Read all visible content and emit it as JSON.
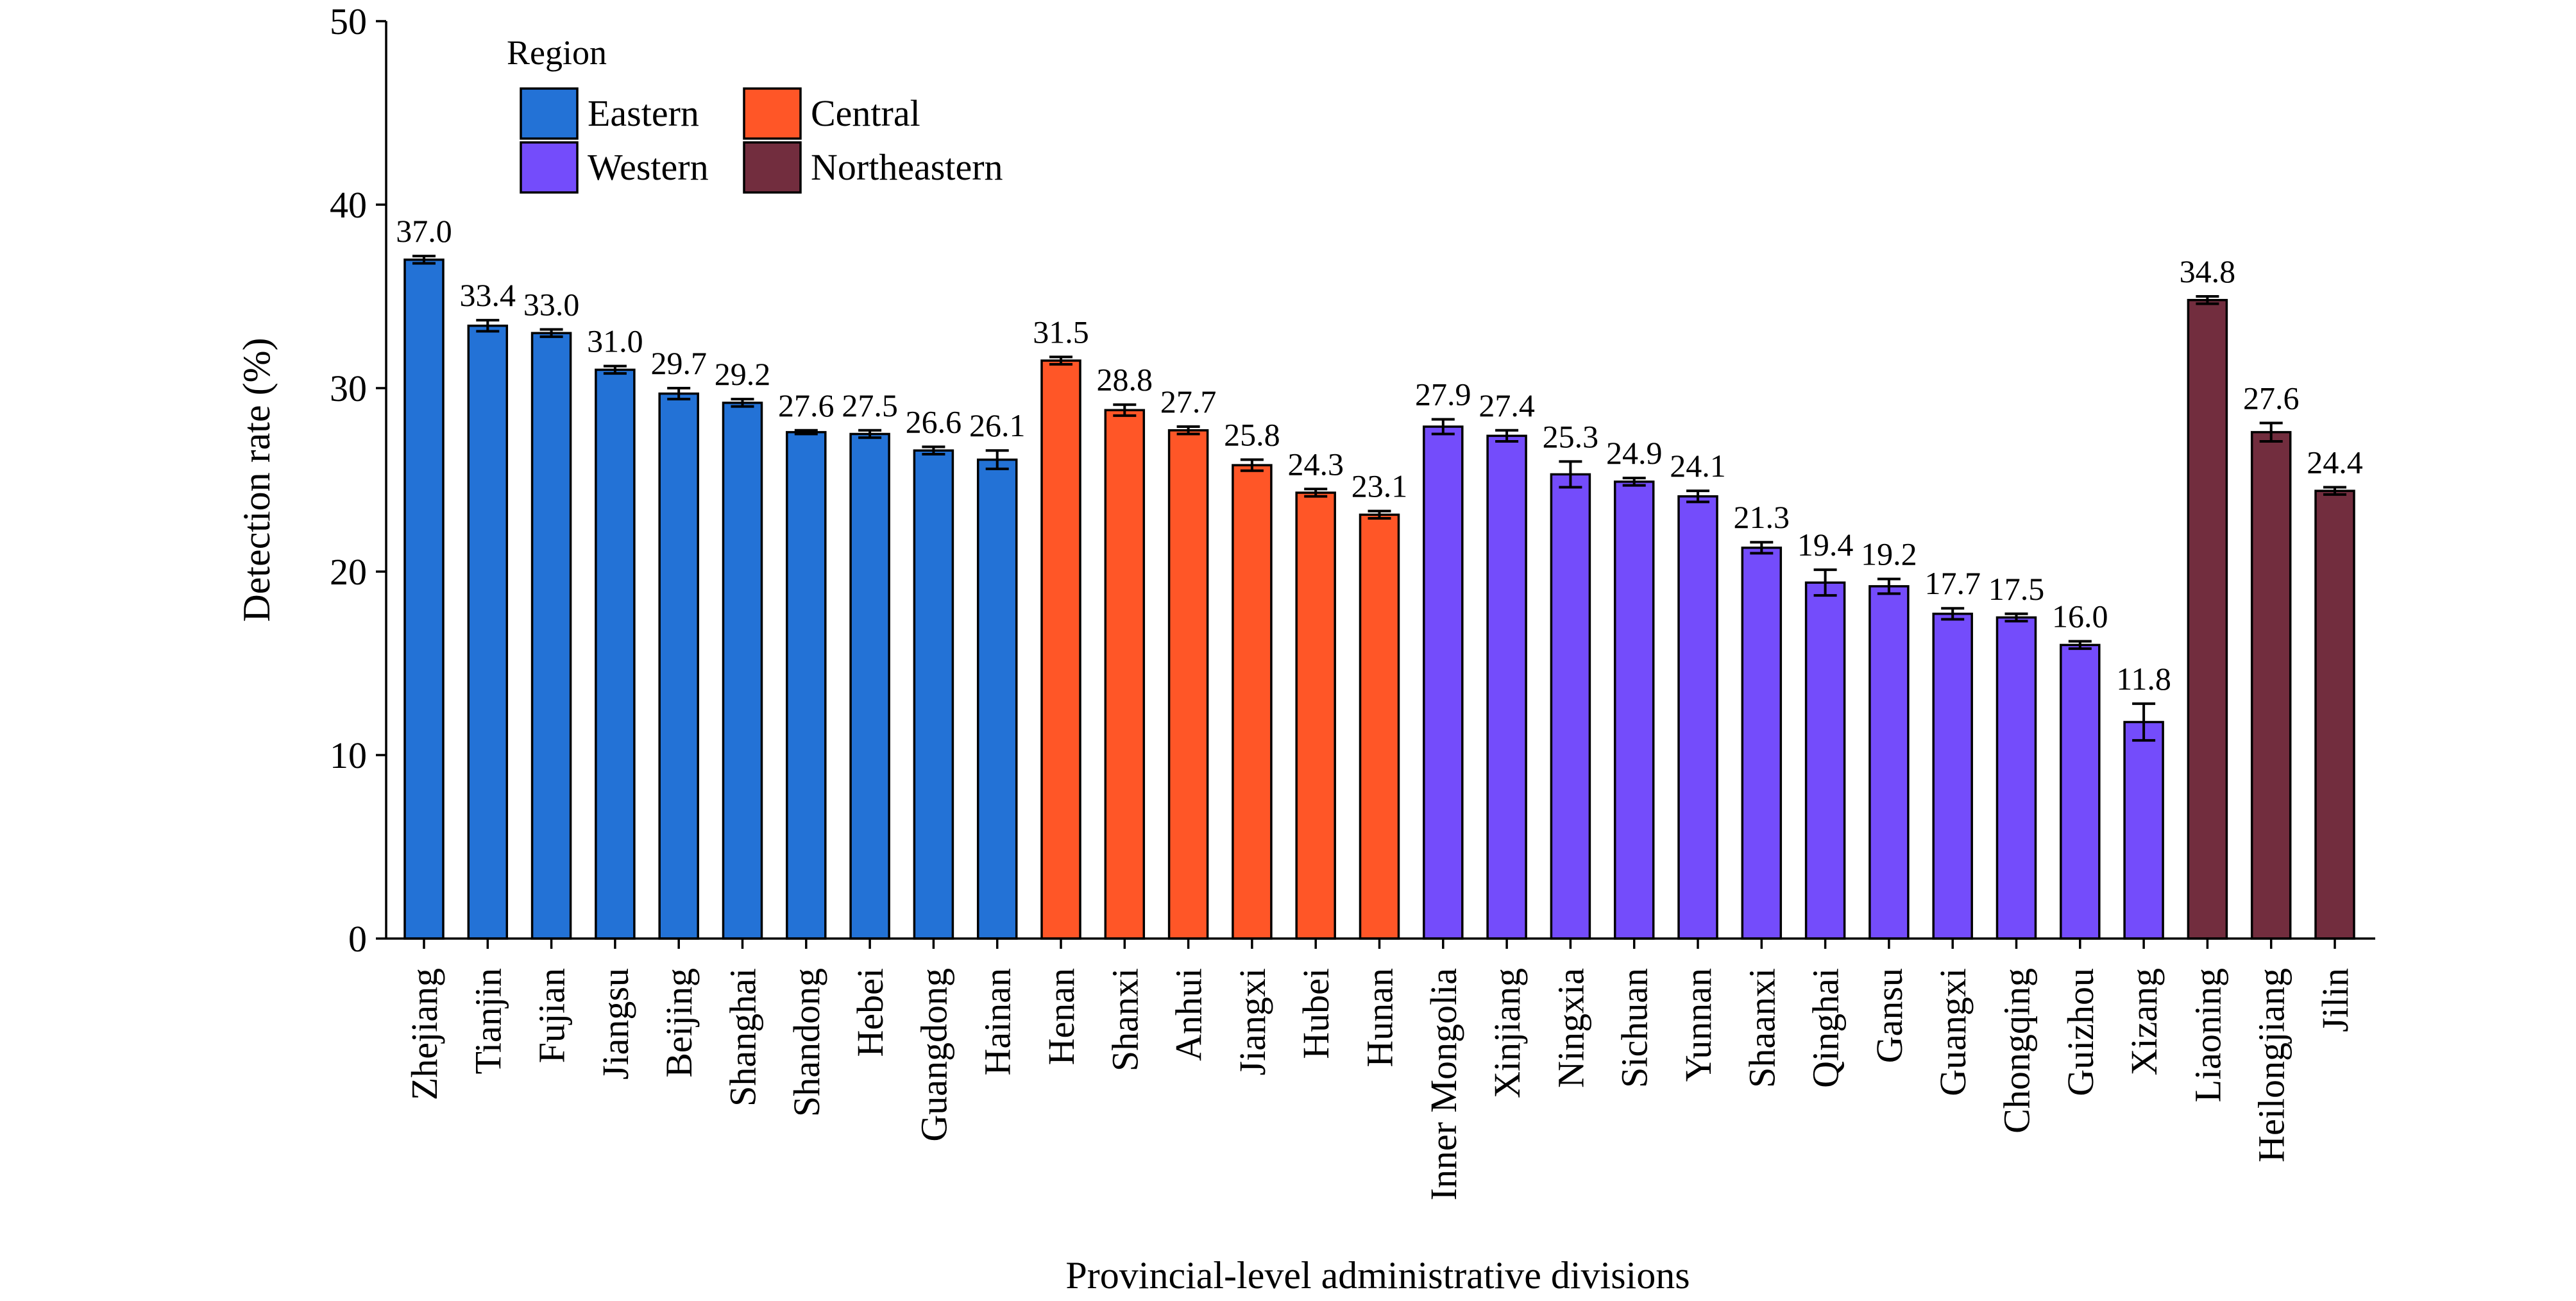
{
  "chart_data": {
    "type": "bar",
    "xlabel": "Provincial-level administrative divisions",
    "ylabel": "Detection rate (%)",
    "ylim": [
      0,
      50
    ],
    "yticks": [
      0,
      10,
      20,
      30,
      40,
      50
    ],
    "grid": false,
    "legend": {
      "title": "Region",
      "placement": "top-left",
      "entries": [
        {
          "name": "Eastern",
          "color": "#2372D6"
        },
        {
          "name": "Central",
          "color": "#FF5627"
        },
        {
          "name": "Western",
          "color": "#744CFB"
        },
        {
          "name": "Northeastern",
          "color": "#722D3E"
        }
      ]
    },
    "categories": [
      "Zhejiang",
      "Tianjin",
      "Fujian",
      "Jiangsu",
      "Beijing",
      "Shanghai",
      "Shandong",
      "Hebei",
      "Guangdong",
      "Hainan",
      "Henan",
      "Shanxi",
      "Anhui",
      "Jiangxi",
      "Hubei",
      "Hunan",
      "Inner Mongolia",
      "Xinjiang",
      "Ningxia",
      "Sichuan",
      "Yunnan",
      "Shaanxi",
      "Qinghai",
      "Gansu",
      "Guangxi",
      "Chongqing",
      "Guizhou",
      "Xizang",
      "Liaoning",
      "Heilongjiang",
      "Jilin"
    ],
    "values": [
      37.0,
      33.4,
      33.0,
      31.0,
      29.7,
      29.2,
      27.6,
      27.5,
      26.6,
      26.1,
      31.5,
      28.8,
      27.7,
      25.8,
      24.3,
      23.1,
      27.9,
      27.4,
      25.3,
      24.9,
      24.1,
      21.3,
      19.4,
      19.2,
      17.7,
      17.5,
      16.0,
      11.8,
      34.8,
      27.6,
      24.4
    ],
    "value_labels": [
      "37.0",
      "33.4",
      "33.0",
      "31.0",
      "29.7",
      "29.2",
      "27.6",
      "27.5",
      "26.6",
      "26.1",
      "31.5",
      "28.8",
      "27.7",
      "25.8",
      "24.3",
      "23.1",
      "27.9",
      "27.4",
      "25.3",
      "24.9",
      "24.1",
      "21.3",
      "19.4",
      "19.2",
      "17.7",
      "17.5",
      "16.0",
      "11.8",
      "34.8",
      "27.6",
      "24.4"
    ],
    "errors": [
      0.2,
      0.3,
      0.2,
      0.2,
      0.3,
      0.2,
      0.1,
      0.2,
      0.2,
      0.5,
      0.2,
      0.3,
      0.2,
      0.3,
      0.2,
      0.2,
      0.4,
      0.3,
      0.7,
      0.2,
      0.3,
      0.3,
      0.7,
      0.4,
      0.3,
      0.2,
      0.2,
      1.0,
      0.2,
      0.5,
      0.2
    ],
    "regions": [
      "Eastern",
      "Eastern",
      "Eastern",
      "Eastern",
      "Eastern",
      "Eastern",
      "Eastern",
      "Eastern",
      "Eastern",
      "Eastern",
      "Central",
      "Central",
      "Central",
      "Central",
      "Central",
      "Central",
      "Western",
      "Western",
      "Western",
      "Western",
      "Western",
      "Western",
      "Western",
      "Western",
      "Western",
      "Western",
      "Western",
      "Western",
      "Northeastern",
      "Northeastern",
      "Northeastern"
    ]
  }
}
